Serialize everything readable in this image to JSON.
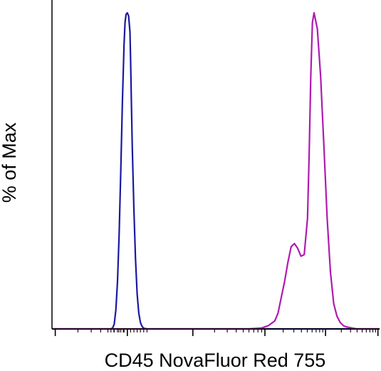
{
  "chart_data": {
    "type": "line",
    "title": "",
    "xlabel": "CD45 NovaFluor Red 755",
    "ylabel": "% of Max",
    "xscale": "biexponential (tick marks only, no numeric tick labels)",
    "xlim": [
      0,
      100
    ],
    "ylim": [
      0,
      100
    ],
    "grid": false,
    "legend": "none",
    "colors": {
      "series_1": "#1a1aa0",
      "series_2": "#b01ab0",
      "axis": "#000000"
    },
    "series": [
      {
        "color": "#1a1aa0",
        "x": [
          0,
          18,
          18.5,
          19,
          19.5,
          20,
          20.5,
          21,
          21.5,
          22,
          22.3,
          22.6,
          23,
          23.4,
          23.8,
          24,
          24.2,
          24.5,
          25,
          25.5,
          26,
          26.5,
          27,
          27.5,
          28,
          29,
          100
        ],
        "y": [
          0,
          0,
          0.3,
          1.5,
          6,
          15,
          30,
          50,
          72,
          90,
          97,
          99.5,
          100,
          99,
          94,
          85,
          74,
          58,
          38,
          22,
          11,
          5,
          2,
          0.8,
          0.2,
          0,
          0
        ]
      },
      {
        "color": "#b01ab0",
        "x": [
          0,
          60,
          64,
          66,
          68,
          69,
          70,
          71,
          72,
          73,
          74,
          75,
          76,
          77,
          78,
          78.5,
          79,
          79.5,
          80,
          81,
          82,
          83,
          84,
          85,
          86,
          87,
          88,
          89,
          90,
          91,
          92,
          93,
          100
        ],
        "y": [
          0,
          0,
          0.3,
          1,
          2.5,
          5,
          10,
          15,
          21,
          26,
          27,
          25.5,
          23,
          23.5,
          35,
          55,
          80,
          97,
          100,
          95,
          80,
          58,
          35,
          18,
          8,
          4,
          2,
          1,
          0.6,
          0.4,
          0.2,
          0,
          0
        ]
      }
    ]
  }
}
